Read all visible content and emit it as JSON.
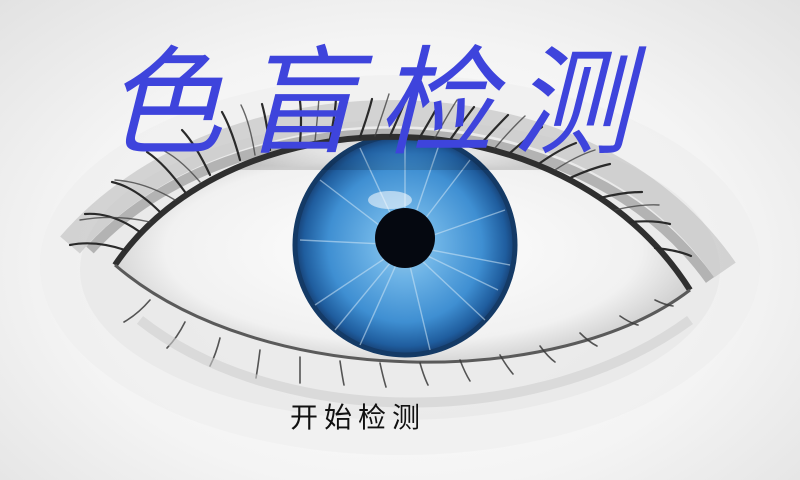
{
  "title": "色盲检测",
  "start_button": {
    "label": "开始检测"
  },
  "colors": {
    "title": "#3e44dc",
    "iris": "#3f8fd2",
    "pupil": "#050810",
    "lashes": "#2a2a2a"
  }
}
